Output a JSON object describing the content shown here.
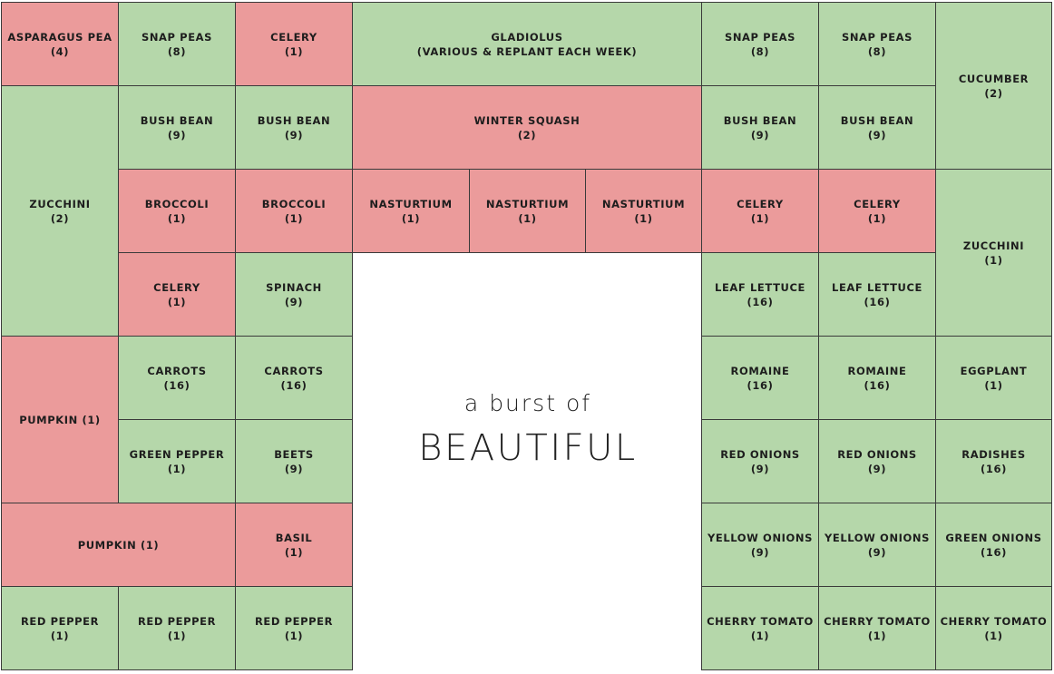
{
  "tagline": {
    "small": "a burst of",
    "large": "BEAUTIFUL"
  },
  "colors": {
    "green": "#b5d7aa",
    "red": "#eb9b9b",
    "grid_line": "#3a3a3a",
    "text": "#1d1d1d"
  },
  "plots": [
    {
      "id": "asparagus-pea",
      "crop": "ASPARAGUS PEA",
      "count": "(4)",
      "color": "red",
      "col": 0,
      "row": 0
    },
    {
      "id": "snap-peas-1",
      "crop": "SNAP PEAS",
      "count": "(8)",
      "color": "green",
      "col": 1,
      "row": 0
    },
    {
      "id": "celery-1",
      "crop": "CELERY",
      "count": "(1)",
      "color": "red",
      "col": 2,
      "row": 0
    },
    {
      "id": "gladiolus",
      "crop": "GLADIOLUS",
      "count": "(VARIOUS & REPLANT EACH WEEK)",
      "color": "green",
      "col": 3,
      "row": 0,
      "colspan": 3
    },
    {
      "id": "snap-peas-2",
      "crop": "SNAP PEAS",
      "count": "(8)",
      "color": "green",
      "col": 6,
      "row": 0
    },
    {
      "id": "snap-peas-3",
      "crop": "SNAP PEAS",
      "count": "(8)",
      "color": "green",
      "col": 7,
      "row": 0
    },
    {
      "id": "cucumber",
      "crop": "CUCUMBER",
      "count": "(2)",
      "color": "green",
      "col": 8,
      "row": 0,
      "rowspan": 2
    },
    {
      "id": "zucchini-1",
      "crop": "ZUCCHINI",
      "count": "(2)",
      "color": "green",
      "col": 0,
      "row": 1,
      "rowspan": 3
    },
    {
      "id": "bush-bean-1",
      "crop": "BUSH BEAN",
      "count": "(9)",
      "color": "green",
      "col": 1,
      "row": 1
    },
    {
      "id": "bush-bean-2",
      "crop": "BUSH BEAN",
      "count": "(9)",
      "color": "green",
      "col": 2,
      "row": 1
    },
    {
      "id": "winter-squash",
      "crop": "WINTER SQUASH",
      "count": "(2)",
      "color": "red",
      "col": 3,
      "row": 1,
      "colspan": 3
    },
    {
      "id": "bush-bean-3",
      "crop": "BUSH BEAN",
      "count": "(9)",
      "color": "green",
      "col": 6,
      "row": 1
    },
    {
      "id": "bush-bean-4",
      "crop": "BUSH BEAN",
      "count": "(9)",
      "color": "green",
      "col": 7,
      "row": 1
    },
    {
      "id": "broccoli-1",
      "crop": "BROCCOLI",
      "count": "(1)",
      "color": "red",
      "col": 1,
      "row": 2
    },
    {
      "id": "broccoli-2",
      "crop": "BROCCOLI",
      "count": "(1)",
      "color": "red",
      "col": 2,
      "row": 2
    },
    {
      "id": "nasturtium-1",
      "crop": "NASTURTIUM",
      "count": "(1)",
      "color": "red",
      "col": 3,
      "row": 2
    },
    {
      "id": "nasturtium-2",
      "crop": "NASTURTIUM",
      "count": "(1)",
      "color": "red",
      "col": 4,
      "row": 2
    },
    {
      "id": "nasturtium-3",
      "crop": "NASTURTIUM",
      "count": "(1)",
      "color": "red",
      "col": 5,
      "row": 2
    },
    {
      "id": "celery-2",
      "crop": "CELERY",
      "count": "(1)",
      "color": "red",
      "col": 6,
      "row": 2
    },
    {
      "id": "celery-3",
      "crop": "CELERY",
      "count": "(1)",
      "color": "red",
      "col": 7,
      "row": 2
    },
    {
      "id": "zucchini-2",
      "crop": "ZUCCHINI",
      "count": "(1)",
      "color": "green",
      "col": 8,
      "row": 2,
      "rowspan": 2
    },
    {
      "id": "celery-4",
      "crop": "CELERY",
      "count": "(1)",
      "color": "red",
      "col": 1,
      "row": 3
    },
    {
      "id": "spinach",
      "crop": "SPINACH",
      "count": "(9)",
      "color": "green",
      "col": 2,
      "row": 3
    },
    {
      "id": "leaf-lettuce-1",
      "crop": "LEAF LETTUCE",
      "count": "(16)",
      "color": "green",
      "col": 6,
      "row": 3
    },
    {
      "id": "leaf-lettuce-2",
      "crop": "LEAF LETTUCE",
      "count": "(16)",
      "color": "green",
      "col": 7,
      "row": 3
    },
    {
      "id": "pumpkin-1",
      "crop": "PUMPKIN (1)",
      "count": "",
      "color": "red",
      "col": 0,
      "row": 4,
      "rowspan": 2
    },
    {
      "id": "carrots-1",
      "crop": "CARROTS",
      "count": "(16)",
      "color": "green",
      "col": 1,
      "row": 4
    },
    {
      "id": "carrots-2",
      "crop": "CARROTS",
      "count": "(16)",
      "color": "green",
      "col": 2,
      "row": 4
    },
    {
      "id": "romaine-1",
      "crop": "ROMAINE",
      "count": "(16)",
      "color": "green",
      "col": 6,
      "row": 4
    },
    {
      "id": "romaine-2",
      "crop": "ROMAINE",
      "count": "(16)",
      "color": "green",
      "col": 7,
      "row": 4
    },
    {
      "id": "eggplant",
      "crop": "EGGPLANT",
      "count": "(1)",
      "color": "green",
      "col": 8,
      "row": 4
    },
    {
      "id": "green-pepper",
      "crop": "GREEN PEPPER",
      "count": "(1)",
      "color": "green",
      "col": 1,
      "row": 5
    },
    {
      "id": "beets",
      "crop": "BEETS",
      "count": "(9)",
      "color": "green",
      "col": 2,
      "row": 5
    },
    {
      "id": "red-onions-1",
      "crop": "RED ONIONS",
      "count": "(9)",
      "color": "green",
      "col": 6,
      "row": 5
    },
    {
      "id": "red-onions-2",
      "crop": "RED ONIONS",
      "count": "(9)",
      "color": "green",
      "col": 7,
      "row": 5
    },
    {
      "id": "radishes",
      "crop": "RADISHES",
      "count": "(16)",
      "color": "green",
      "col": 8,
      "row": 5
    },
    {
      "id": "pumpkin-2",
      "crop": "PUMPKIN (1)",
      "count": "",
      "color": "red",
      "col": 0,
      "row": 6,
      "colspan": 2
    },
    {
      "id": "basil",
      "crop": "BASIL",
      "count": "(1)",
      "color": "red",
      "col": 2,
      "row": 6
    },
    {
      "id": "yellow-onions-1",
      "crop": "YELLOW ONIONS",
      "count": "(9)",
      "color": "green",
      "col": 6,
      "row": 6
    },
    {
      "id": "yellow-onions-2",
      "crop": "YELLOW ONIONS",
      "count": "(9)",
      "color": "green",
      "col": 7,
      "row": 6
    },
    {
      "id": "green-onions",
      "crop": "GREEN ONIONS",
      "count": "(16)",
      "color": "green",
      "col": 8,
      "row": 6
    },
    {
      "id": "red-pepper-1",
      "crop": "RED PEPPER",
      "count": "(1)",
      "color": "green",
      "col": 0,
      "row": 7
    },
    {
      "id": "red-pepper-2",
      "crop": "RED PEPPER",
      "count": "(1)",
      "color": "green",
      "col": 1,
      "row": 7
    },
    {
      "id": "red-pepper-3",
      "crop": "RED PEPPER",
      "count": "(1)",
      "color": "green",
      "col": 2,
      "row": 7
    },
    {
      "id": "cherry-tomato-1",
      "crop": "CHERRY TOMATO",
      "count": "(1)",
      "color": "green",
      "col": 6,
      "row": 7
    },
    {
      "id": "cherry-tomato-2",
      "crop": "CHERRY TOMATO",
      "count": "(1)",
      "color": "green",
      "col": 7,
      "row": 7
    },
    {
      "id": "cherry-tomato-3",
      "crop": "CHERRY TOMATO",
      "count": "(1)",
      "color": "green",
      "col": 8,
      "row": 7
    }
  ]
}
